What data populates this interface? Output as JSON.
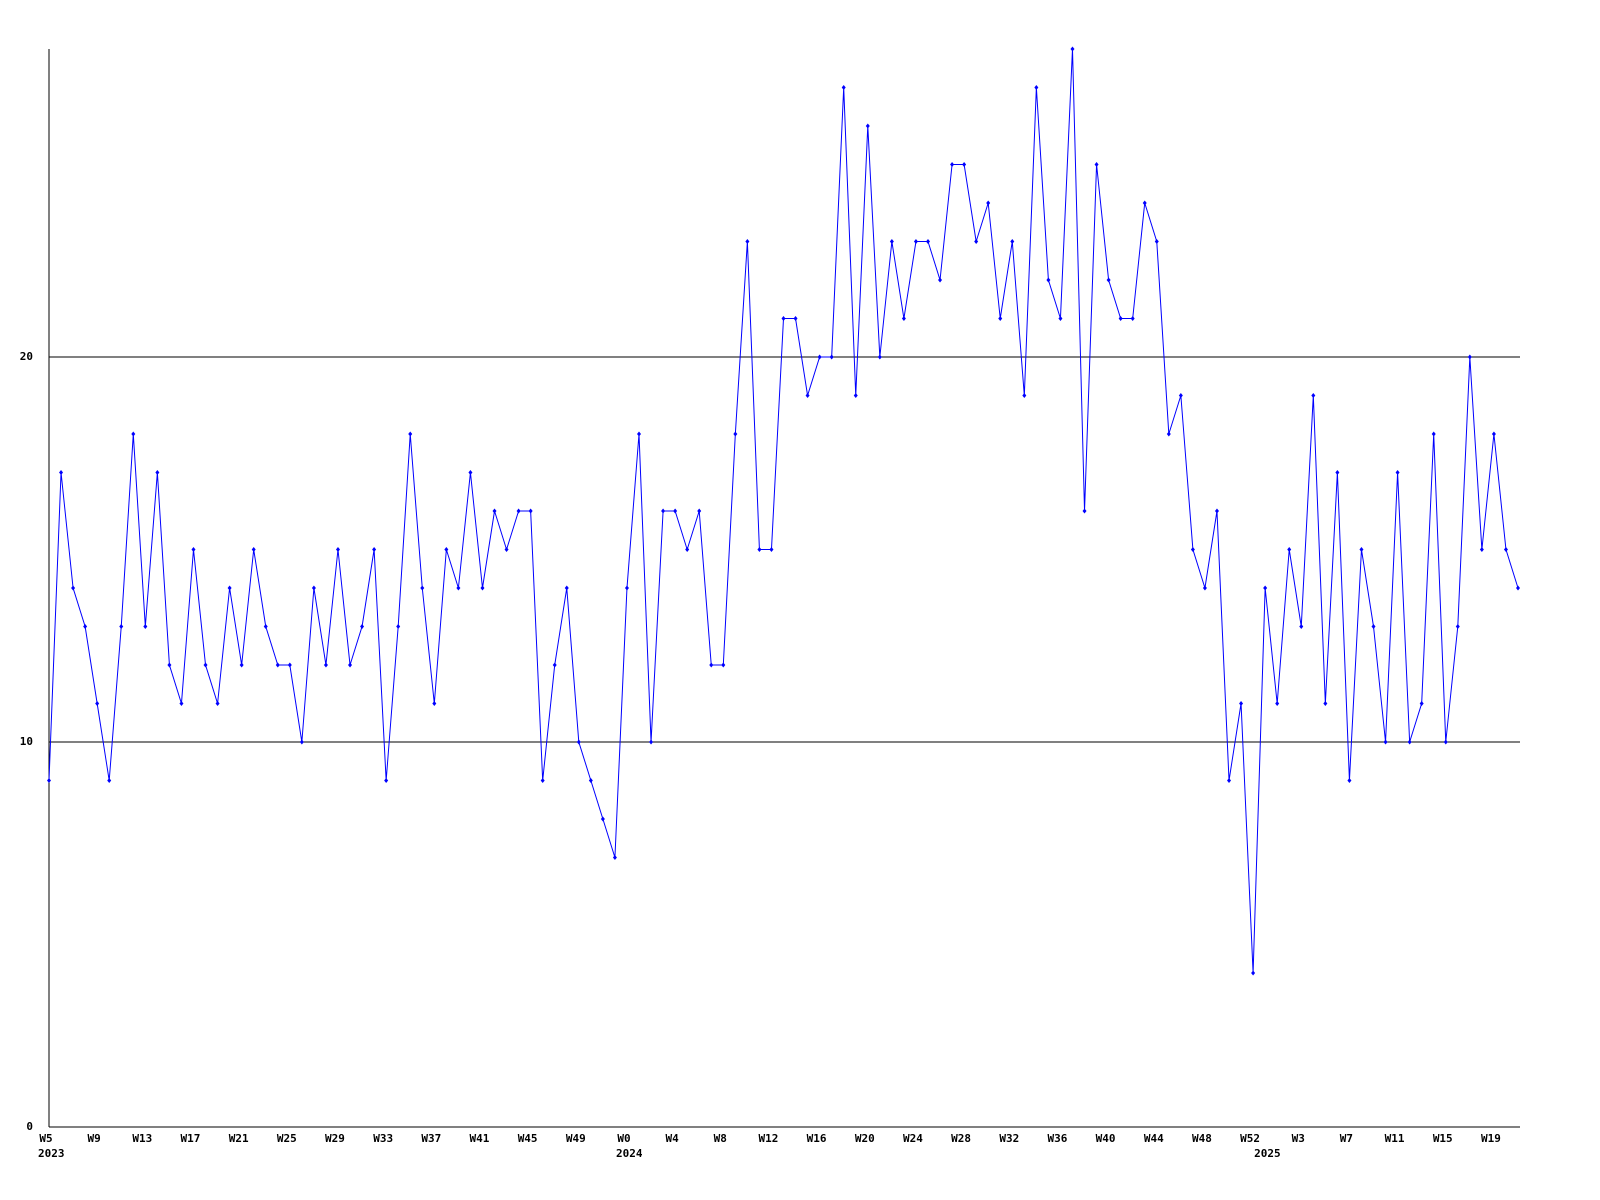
{
  "chart_data": {
    "type": "line",
    "categories": [
      "W5",
      null,
      null,
      null,
      "W9",
      null,
      null,
      null,
      "W13",
      null,
      null,
      null,
      "W17",
      null,
      null,
      null,
      "W21",
      null,
      null,
      null,
      "W25",
      null,
      null,
      null,
      "W29",
      null,
      null,
      null,
      "W33",
      null,
      null,
      null,
      "W37",
      null,
      null,
      null,
      "W41",
      null,
      null,
      null,
      "W45",
      null,
      null,
      null,
      "W49",
      null,
      null,
      null,
      "W0",
      null,
      null,
      null,
      "W4",
      null,
      null,
      null,
      "W8",
      null,
      null,
      null,
      "W12",
      null,
      null,
      null,
      "W16",
      null,
      null,
      null,
      "W20",
      null,
      null,
      null,
      "W24",
      null,
      null,
      null,
      "W28",
      null,
      null,
      null,
      "W32",
      null,
      null,
      null,
      "W36",
      null,
      null,
      null,
      "W40",
      null,
      null,
      null,
      "W44",
      null,
      null,
      null,
      "W48",
      null,
      null,
      null,
      "W52",
      null,
      null,
      null,
      "W3",
      null,
      null,
      null,
      "W7",
      null,
      null,
      null,
      "W11",
      null,
      null,
      null,
      "W15",
      null,
      null,
      null,
      "W19",
      null,
      null
    ],
    "years": [
      "2023",
      null,
      null,
      null,
      null,
      null,
      null,
      null,
      null,
      null,
      null,
      null,
      null,
      null,
      null,
      null,
      null,
      null,
      null,
      null,
      null,
      null,
      null,
      null,
      null,
      null,
      null,
      null,
      null,
      null,
      null,
      null,
      null,
      null,
      null,
      null,
      null,
      null,
      null,
      null,
      null,
      null,
      null,
      null,
      null,
      null,
      null,
      null,
      "2024",
      null,
      null,
      null,
      null,
      null,
      null,
      null,
      null,
      null,
      null,
      null,
      null,
      null,
      null,
      null,
      null,
      null,
      null,
      null,
      null,
      null,
      null,
      null,
      null,
      null,
      null,
      null,
      null,
      null,
      null,
      null,
      null,
      null,
      null,
      null,
      null,
      null,
      null,
      null,
      null,
      null,
      null,
      null,
      null,
      null,
      null,
      null,
      null,
      null,
      null,
      null,
      null,
      "2025",
      null,
      null,
      null,
      null,
      null,
      null,
      null,
      null,
      null,
      null,
      null,
      null,
      null,
      null,
      null,
      null,
      null,
      null,
      null,
      null,
      null
    ],
    "series": [
      {
        "color": "#0000ff",
        "values": [
          9,
          17,
          14,
          13,
          11,
          9,
          13,
          18,
          13,
          17,
          12,
          11,
          15,
          12,
          11,
          14,
          12,
          15,
          13,
          12,
          12,
          10,
          14,
          12,
          15,
          12,
          13,
          15,
          9,
          13,
          18,
          14,
          11,
          15,
          14,
          17,
          14,
          16,
          15,
          16,
          16,
          9,
          12,
          14,
          10,
          9,
          8,
          7,
          14,
          18,
          10,
          16,
          16,
          15,
          16,
          12,
          12,
          18,
          23,
          15,
          15,
          21,
          21,
          19,
          20,
          20,
          27,
          19,
          26,
          20,
          23,
          21,
          23,
          23,
          22,
          25,
          25,
          23,
          24,
          21,
          23,
          19,
          27,
          22,
          21,
          28,
          16,
          25,
          22,
          21,
          21,
          24,
          23,
          18,
          19,
          15,
          14,
          16,
          9,
          11,
          4,
          14,
          11,
          15,
          13,
          19,
          11,
          17,
          9,
          15,
          13,
          10,
          17,
          10,
          11,
          18,
          10,
          13,
          20,
          15,
          18,
          15,
          14
        ]
      }
    ],
    "ylim": [
      0,
      28
    ],
    "yticks": [
      0,
      10,
      20
    ],
    "grid": true
  }
}
